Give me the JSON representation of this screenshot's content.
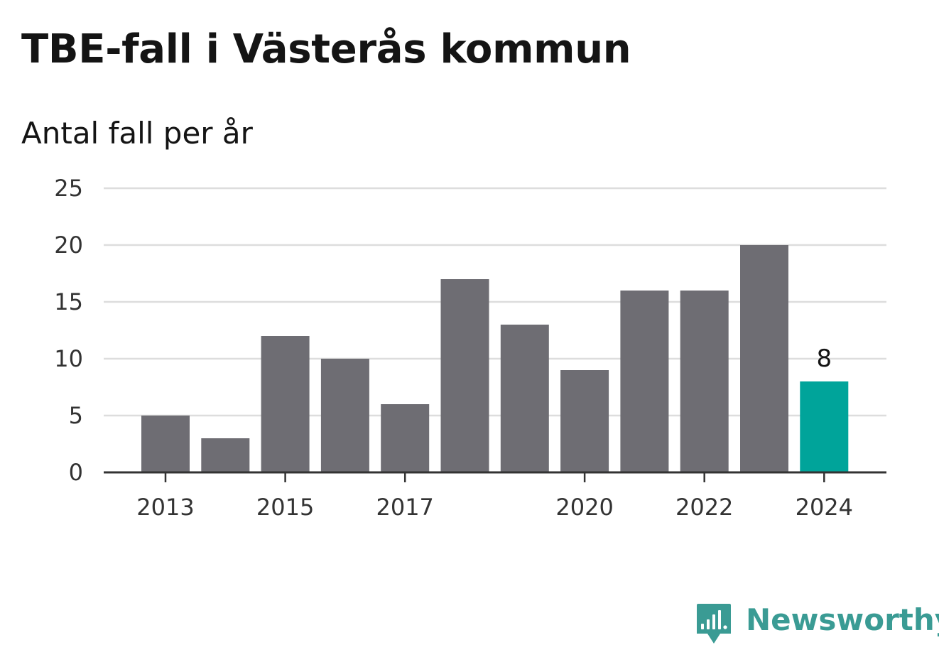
{
  "header": {
    "title": "TBE-fall i Västerås kommun",
    "subtitle": "Antal fall per år"
  },
  "chart_data": {
    "type": "bar",
    "categories": [
      2013,
      2014,
      2015,
      2016,
      2017,
      2018,
      2019,
      2020,
      2021,
      2022,
      2023,
      2024
    ],
    "values": [
      5,
      3,
      12,
      10,
      6,
      17,
      13,
      9,
      16,
      16,
      20,
      8
    ],
    "x_tick_labels": [
      "2013",
      "2015",
      "2017",
      "2020",
      "2022",
      "2024"
    ],
    "y_ticks": [
      0,
      5,
      10,
      15,
      20,
      25
    ],
    "ylim": [
      0,
      25
    ],
    "grid": true,
    "legend": "none",
    "highlight": {
      "category": 2024,
      "label": "8"
    },
    "colors": {
      "bar": "#6e6d73",
      "highlight": "#00a49a",
      "grid": "#dddddd",
      "axis": "#333333"
    }
  },
  "branding": {
    "logo_icon": "newsworthy-logo-icon",
    "name": "Newsworthy",
    "color": "#3a9b94"
  }
}
